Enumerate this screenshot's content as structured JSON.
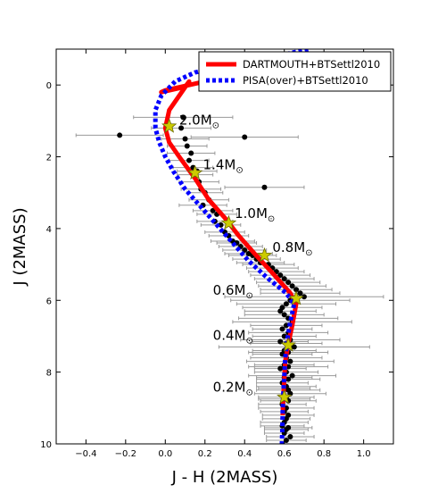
{
  "chart_data": {
    "type": "scatter",
    "xlabel": "J - H (2MASS)",
    "ylabel": "J (2MASS)",
    "xlim": [
      -0.55,
      1.15
    ],
    "ylim": [
      10,
      -1
    ],
    "y_inverted": true,
    "x_ticks": [
      -0.4,
      -0.2,
      0.0,
      0.2,
      0.4,
      0.6,
      0.8,
      1.0
    ],
    "x_tick_labels": [
      "−0.4",
      "−0.2",
      "0.0",
      "0.2",
      "0.4",
      "0.6",
      "0.8",
      "1.0"
    ],
    "y_ticks": [
      0,
      2,
      4,
      6,
      8,
      10
    ],
    "y_tick_labels": [
      "0",
      "2",
      "4",
      "6",
      "8",
      "10"
    ],
    "legend_position": "top-right",
    "series": [
      {
        "name": "DARTMOUTH+BTSettl2010",
        "kind": "line",
        "color": "#ff0000",
        "style": "solid",
        "x": [
          0.72,
          0.7,
          0.65,
          0.5,
          0.35,
          0.2,
          0.08,
          0.0,
          -0.02,
          0.02,
          0.1,
          0.12,
          0.07,
          0.02,
          0.0,
          0.02,
          0.07,
          0.15,
          0.22,
          0.3,
          0.37,
          0.45,
          0.55,
          0.63,
          0.66,
          0.64,
          0.62,
          0.605,
          0.6,
          0.595,
          0.592
        ],
        "y": [
          -0.9,
          -0.7,
          -0.55,
          -0.4,
          -0.25,
          -0.1,
          0.05,
          0.15,
          0.2,
          0.15,
          0.05,
          -0.1,
          0.3,
          0.7,
          1.2,
          1.6,
          2.0,
          2.6,
          3.2,
          3.7,
          4.2,
          4.7,
          5.3,
          5.8,
          6.1,
          6.7,
          7.2,
          7.7,
          8.2,
          8.7,
          9.2
        ]
      },
      {
        "name": "PISA(over)+BTSettl2010",
        "kind": "line",
        "color": "#0000ff",
        "style": "dotted",
        "x": [
          0.72,
          0.6,
          0.45,
          0.3,
          0.15,
          0.05,
          -0.02,
          -0.05,
          -0.05,
          -0.03,
          0.0,
          0.04,
          0.1,
          0.18,
          0.26,
          0.34,
          0.42,
          0.52,
          0.61,
          0.65,
          0.63,
          0.615,
          0.605,
          0.6,
          0.595,
          0.592,
          0.59,
          0.588
        ],
        "y": [
          -1.0,
          -0.85,
          -0.7,
          -0.55,
          -0.35,
          -0.1,
          0.3,
          0.7,
          1.2,
          1.6,
          2.0,
          2.4,
          2.9,
          3.4,
          3.9,
          4.4,
          4.9,
          5.4,
          5.8,
          6.1,
          6.6,
          7.1,
          7.6,
          8.1,
          8.6,
          9.1,
          9.6,
          10.0
        ]
      },
      {
        "name": "",
        "kind": "scatter",
        "color": "#000000",
        "marker": "circle",
        "x": [
          -0.23,
          0.09,
          0.4,
          0.08,
          0.1,
          0.11,
          0.13,
          0.12,
          0.14,
          0.15,
          0.16,
          0.17,
          0.5,
          0.18,
          0.2,
          0.22,
          0.19,
          0.24,
          0.26,
          0.25,
          0.28,
          0.3,
          0.32,
          0.34,
          0.36,
          0.38,
          0.4,
          0.42,
          0.44,
          0.46,
          0.48,
          0.52,
          0.54,
          0.56,
          0.58,
          0.6,
          0.62,
          0.64,
          0.66,
          0.68,
          0.7,
          0.63,
          0.61,
          0.59,
          0.58,
          0.6,
          0.62,
          0.64,
          0.61,
          0.59,
          0.62,
          0.6,
          0.63,
          0.58,
          0.61,
          0.65,
          0.6,
          0.62,
          0.59,
          0.61,
          0.63,
          0.6,
          0.62,
          0.58,
          0.61,
          0.64,
          0.6,
          0.62,
          0.59,
          0.61,
          0.6,
          0.62,
          0.63,
          0.61,
          0.6,
          0.62,
          0.59,
          0.61,
          0.6,
          0.62,
          0.61,
          0.6,
          0.59,
          0.62,
          0.61,
          0.6,
          0.63,
          0.61
        ],
        "y": [
          1.4,
          0.9,
          1.45,
          1.2,
          1.5,
          1.7,
          1.9,
          2.1,
          2.3,
          2.5,
          2.4,
          2.7,
          2.85,
          2.9,
          3.0,
          3.2,
          3.35,
          3.5,
          3.6,
          3.8,
          3.9,
          4.1,
          4.2,
          4.35,
          4.4,
          4.5,
          4.6,
          4.7,
          4.75,
          4.85,
          4.95,
          5.0,
          5.1,
          5.2,
          5.3,
          5.4,
          5.5,
          5.6,
          5.7,
          5.8,
          5.9,
          6.0,
          6.1,
          6.2,
          6.3,
          6.4,
          6.5,
          6.6,
          6.7,
          6.8,
          6.9,
          7.0,
          7.1,
          7.15,
          7.2,
          7.3,
          7.4,
          7.45,
          7.5,
          7.6,
          7.7,
          7.8,
          7.85,
          7.9,
          8.0,
          8.1,
          8.15,
          8.2,
          8.3,
          8.4,
          8.45,
          8.5,
          8.6,
          8.7,
          8.75,
          8.8,
          8.9,
          9.0,
          9.1,
          9.2,
          9.3,
          9.4,
          9.5,
          9.55,
          9.6,
          9.7,
          9.8,
          9.9
        ],
        "x_err": [
          0.22,
          0.25,
          0.27,
          0.15,
          0.12,
          0.1,
          0.12,
          0.1,
          0.1,
          0.09,
          0.1,
          0.1,
          0.2,
          0.1,
          0.09,
          0.1,
          0.12,
          0.1,
          0.1,
          0.09,
          0.1,
          0.1,
          0.1,
          0.11,
          0.1,
          0.11,
          0.11,
          0.12,
          0.12,
          0.12,
          0.12,
          0.13,
          0.13,
          0.14,
          0.15,
          0.15,
          0.16,
          0.17,
          0.18,
          0.2,
          0.4,
          0.3,
          0.25,
          0.2,
          0.18,
          0.2,
          0.25,
          0.3,
          0.18,
          0.15,
          0.2,
          0.16,
          0.25,
          0.14,
          0.18,
          0.38,
          0.16,
          0.2,
          0.15,
          0.18,
          0.22,
          0.15,
          0.2,
          0.13,
          0.16,
          0.22,
          0.14,
          0.16,
          0.13,
          0.15,
          0.13,
          0.16,
          0.18,
          0.14,
          0.13,
          0.14,
          0.12,
          0.14,
          0.12,
          0.13,
          0.12,
          0.12,
          0.11,
          0.12,
          0.11,
          0.1,
          0.12,
          0.1
        ]
      },
      {
        "name": "",
        "kind": "markers",
        "color": "#cccc00",
        "marker": "star",
        "x": [
          0.02,
          0.15,
          0.32,
          0.5,
          0.66,
          0.62,
          0.6
        ],
        "y": [
          1.15,
          2.45,
          3.85,
          4.75,
          5.95,
          7.25,
          8.7
        ]
      }
    ],
    "annotations": [
      {
        "text": "2.0M",
        "sub": "⊙",
        "x": 0.07,
        "y": 1.1
      },
      {
        "text": "1.4M",
        "sub": "⊙",
        "x": 0.19,
        "y": 2.35
      },
      {
        "text": "1.0M",
        "sub": "⊙",
        "x": 0.35,
        "y": 3.7
      },
      {
        "text": "0.8M",
        "sub": "⊙",
        "x": 0.54,
        "y": 4.65
      },
      {
        "text": "0.6M",
        "sub": "⊙",
        "x": 0.24,
        "y": 5.85
      },
      {
        "text": "0.4M",
        "sub": "⊙",
        "x": 0.24,
        "y": 7.1
      },
      {
        "text": "0.2M",
        "sub": "⊙",
        "x": 0.24,
        "y": 8.55
      }
    ]
  }
}
